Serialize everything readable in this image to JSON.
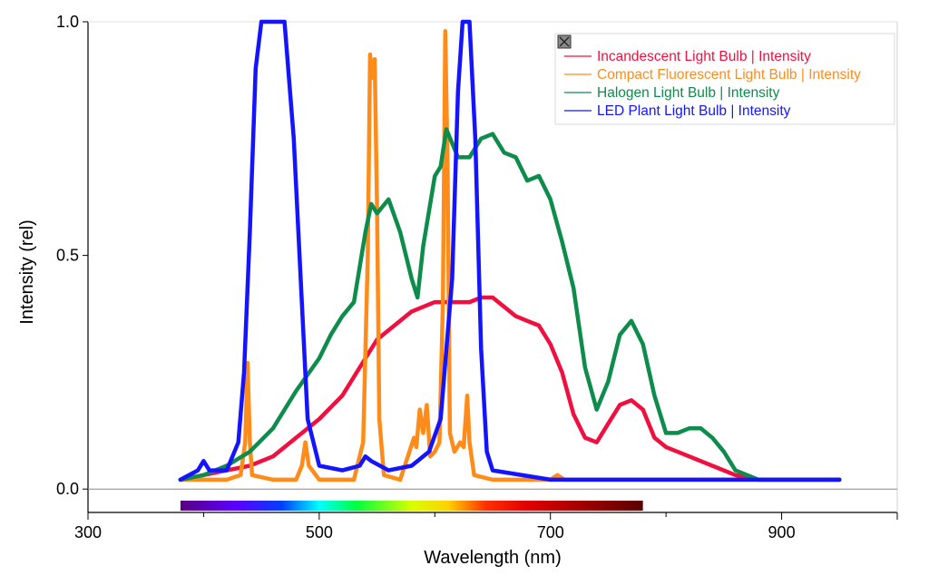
{
  "chart_data": {
    "type": "line",
    "xlabel": "Wavelength (nm)",
    "ylabel": "Intensity (rel)",
    "xlim": [
      300,
      1000
    ],
    "ylim": [
      -0.05,
      1.0
    ],
    "x_ticks": [
      300,
      500,
      700,
      900
    ],
    "x_tick_labels": [
      "300",
      "500",
      "700",
      "900"
    ],
    "y_ticks": [
      0.0,
      0.5,
      1.0
    ],
    "y_tick_labels": [
      "0.0",
      "0.5",
      "1.0"
    ],
    "grid": false,
    "legend_position": "top-right",
    "spectrum_bar": {
      "from": 380,
      "to": 780
    },
    "series": [
      {
        "name": "Incandescent Light Bulb | Intensity",
        "color": "#f0103f",
        "points": [
          [
            380,
            0.02
          ],
          [
            400,
            0.03
          ],
          [
            420,
            0.04
          ],
          [
            440,
            0.05
          ],
          [
            460,
            0.07
          ],
          [
            480,
            0.11
          ],
          [
            500,
            0.15
          ],
          [
            520,
            0.2
          ],
          [
            540,
            0.28
          ],
          [
            550,
            0.32
          ],
          [
            560,
            0.34
          ],
          [
            580,
            0.38
          ],
          [
            600,
            0.4
          ],
          [
            610,
            0.4
          ],
          [
            620,
            0.4
          ],
          [
            630,
            0.4
          ],
          [
            640,
            0.41
          ],
          [
            650,
            0.41
          ],
          [
            660,
            0.39
          ],
          [
            670,
            0.37
          ],
          [
            680,
            0.36
          ],
          [
            690,
            0.35
          ],
          [
            700,
            0.31
          ],
          [
            710,
            0.25
          ],
          [
            720,
            0.16
          ],
          [
            730,
            0.11
          ],
          [
            740,
            0.1
          ],
          [
            750,
            0.14
          ],
          [
            760,
            0.18
          ],
          [
            770,
            0.19
          ],
          [
            780,
            0.17
          ],
          [
            790,
            0.11
          ],
          [
            800,
            0.09
          ],
          [
            820,
            0.07
          ],
          [
            840,
            0.05
          ],
          [
            860,
            0.03
          ],
          [
            880,
            0.02
          ],
          [
            900,
            0.02
          ],
          [
            950,
            0.02
          ]
        ]
      },
      {
        "name": "Compact Fluorescent Light Bulb | Intensity",
        "color": "#ff8c1a",
        "points": [
          [
            380,
            0.02
          ],
          [
            420,
            0.02
          ],
          [
            432,
            0.03
          ],
          [
            436,
            0.1
          ],
          [
            438,
            0.27
          ],
          [
            440,
            0.1
          ],
          [
            442,
            0.03
          ],
          [
            460,
            0.02
          ],
          [
            480,
            0.02
          ],
          [
            485,
            0.05
          ],
          [
            488,
            0.1
          ],
          [
            491,
            0.05
          ],
          [
            500,
            0.02
          ],
          [
            530,
            0.02
          ],
          [
            538,
            0.1
          ],
          [
            542,
            0.5
          ],
          [
            544,
            0.93
          ],
          [
            546,
            0.88
          ],
          [
            548,
            0.92
          ],
          [
            550,
            0.6
          ],
          [
            552,
            0.15
          ],
          [
            556,
            0.03
          ],
          [
            570,
            0.02
          ],
          [
            578,
            0.08
          ],
          [
            582,
            0.11
          ],
          [
            584,
            0.09
          ],
          [
            587,
            0.17
          ],
          [
            590,
            0.12
          ],
          [
            593,
            0.18
          ],
          [
            596,
            0.07
          ],
          [
            600,
            0.08
          ],
          [
            604,
            0.1
          ],
          [
            607,
            0.4
          ],
          [
            609,
            0.98
          ],
          [
            611,
            0.7
          ],
          [
            613,
            0.12
          ],
          [
            617,
            0.08
          ],
          [
            622,
            0.1
          ],
          [
            625,
            0.09
          ],
          [
            628,
            0.2
          ],
          [
            630,
            0.1
          ],
          [
            634,
            0.03
          ],
          [
            650,
            0.02
          ],
          [
            700,
            0.02
          ],
          [
            706,
            0.03
          ],
          [
            712,
            0.02
          ],
          [
            800,
            0.02
          ],
          [
            950,
            0.02
          ]
        ]
      },
      {
        "name": "Halogen Light Bulb | Intensity",
        "color": "#0d8c4b",
        "points": [
          [
            380,
            0.02
          ],
          [
            400,
            0.03
          ],
          [
            420,
            0.05
          ],
          [
            440,
            0.08
          ],
          [
            460,
            0.13
          ],
          [
            480,
            0.21
          ],
          [
            500,
            0.28
          ],
          [
            510,
            0.33
          ],
          [
            520,
            0.37
          ],
          [
            530,
            0.4
          ],
          [
            540,
            0.55
          ],
          [
            545,
            0.61
          ],
          [
            550,
            0.59
          ],
          [
            560,
            0.62
          ],
          [
            570,
            0.55
          ],
          [
            580,
            0.45
          ],
          [
            585,
            0.41
          ],
          [
            590,
            0.52
          ],
          [
            600,
            0.67
          ],
          [
            605,
            0.69
          ],
          [
            610,
            0.77
          ],
          [
            620,
            0.71
          ],
          [
            630,
            0.71
          ],
          [
            640,
            0.75
          ],
          [
            650,
            0.76
          ],
          [
            660,
            0.72
          ],
          [
            670,
            0.71
          ],
          [
            680,
            0.66
          ],
          [
            690,
            0.67
          ],
          [
            700,
            0.62
          ],
          [
            710,
            0.53
          ],
          [
            720,
            0.43
          ],
          [
            730,
            0.26
          ],
          [
            740,
            0.17
          ],
          [
            750,
            0.23
          ],
          [
            760,
            0.33
          ],
          [
            770,
            0.36
          ],
          [
            780,
            0.31
          ],
          [
            790,
            0.2
          ],
          [
            800,
            0.12
          ],
          [
            810,
            0.12
          ],
          [
            820,
            0.13
          ],
          [
            830,
            0.13
          ],
          [
            840,
            0.11
          ],
          [
            850,
            0.08
          ],
          [
            860,
            0.04
          ],
          [
            880,
            0.02
          ],
          [
            900,
            0.02
          ],
          [
            950,
            0.02
          ]
        ]
      },
      {
        "name": "LED Plant Light Bulb | Intensity",
        "color": "#1414ff",
        "points": [
          [
            380,
            0.02
          ],
          [
            395,
            0.04
          ],
          [
            400,
            0.06
          ],
          [
            405,
            0.04
          ],
          [
            420,
            0.04
          ],
          [
            430,
            0.1
          ],
          [
            435,
            0.25
          ],
          [
            440,
            0.55
          ],
          [
            445,
            0.9
          ],
          [
            450,
            1.0
          ],
          [
            470,
            1.0
          ],
          [
            478,
            0.75
          ],
          [
            485,
            0.4
          ],
          [
            490,
            0.15
          ],
          [
            500,
            0.05
          ],
          [
            520,
            0.04
          ],
          [
            535,
            0.05
          ],
          [
            540,
            0.07
          ],
          [
            545,
            0.06
          ],
          [
            560,
            0.04
          ],
          [
            580,
            0.05
          ],
          [
            595,
            0.08
          ],
          [
            605,
            0.15
          ],
          [
            615,
            0.45
          ],
          [
            620,
            0.85
          ],
          [
            624,
            1.0
          ],
          [
            630,
            1.0
          ],
          [
            635,
            0.75
          ],
          [
            640,
            0.3
          ],
          [
            645,
            0.08
          ],
          [
            650,
            0.04
          ],
          [
            700,
            0.02
          ],
          [
            800,
            0.02
          ],
          [
            950,
            0.02
          ]
        ]
      }
    ]
  }
}
